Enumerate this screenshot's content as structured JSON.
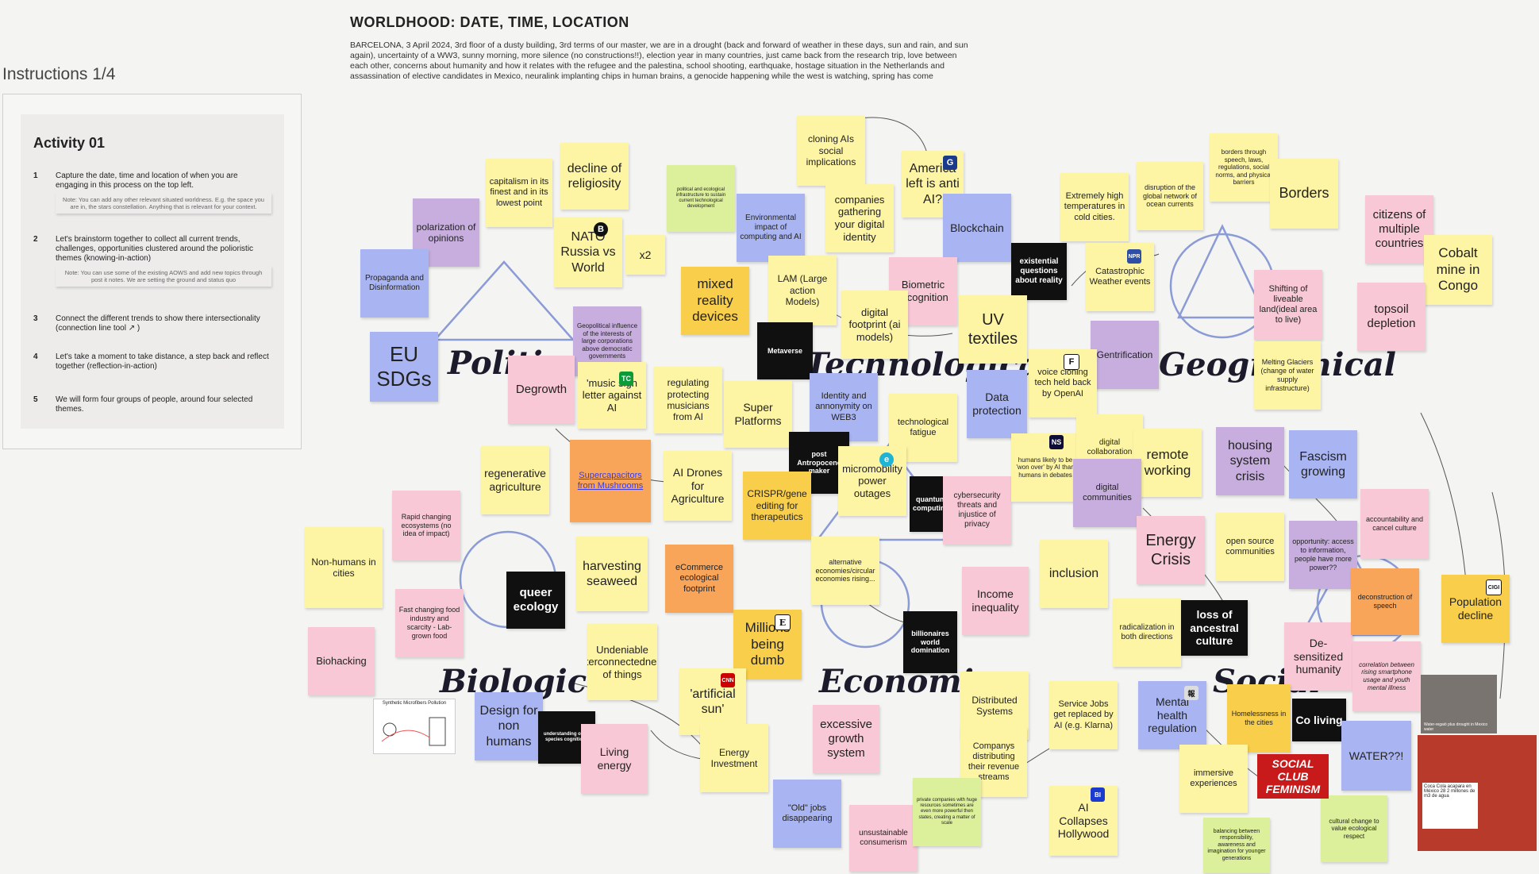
{
  "header": {
    "title": "WORLDHOOD: DATE, TIME, LOCATION",
    "description": "BARCELONA, 3 April 2024, 3rd floor of a dusty building, 3rd terms of our master, we are in a drought (back and forward of weather in these days, sun and rain, and sun again), uncertainty of a WW3, sunny morning, more silence (no constructions!!), election year in many countries, just came back from the research trip, love between each other, concerns about humanity and how it relates with the refugee and the palestina, school shooting, earthquake, hostage situation in the Netherlands and assassination of elective candidates in Mexico, neuralink implanting chips in human brains, a genocide happening while the west is watching, spring has come"
  },
  "instructions": {
    "label": "Instructions 1/4",
    "activity_title": "Activity 01",
    "steps": [
      {
        "num": "1",
        "text": "Capture the date, time and location of when you are engaging in this process on the top left.",
        "note": "Note: You can add any other relevant situated worldness. E.g. the space you are in, the stars constellation. Anything that is relevant for your context."
      },
      {
        "num": "2",
        "text": "Let's brainstorm together to collect all current trends, challenges, opportunities clustered around the polioristic themes (knowing-in-action)",
        "note": "Note: You can use some of the existing AOWS and add new topics through post it notes. We are setting the ground and status quo"
      },
      {
        "num": "3",
        "text": "Connect the different trends to show there intersectionality (connection line tool ↗ )",
        "note": ""
      },
      {
        "num": "4",
        "text": "Let's take a moment to take distance, a step back and reflect together (reflection-in-action)",
        "note": ""
      },
      {
        "num": "5",
        "text": "We will form four groups of people, around four selected themes.",
        "note": ""
      }
    ]
  },
  "themes": {
    "political": "Political",
    "technological": "Technological",
    "geographical": "Geographical",
    "biological": "Biological",
    "economic": "Economic",
    "social": "Social"
  },
  "notes": {
    "capitalism": "capitalism in its finest and in its lowest point",
    "religiosity": "decline of religiosity",
    "polarization": "polarization of opinions",
    "propaganda": "Propaganda and Disinformation",
    "nato": "NATO Russia vs World",
    "x2": "x2",
    "political_eco": "political and ecological infrastructure to sustain current technological development",
    "environmental": "Environmental impact of computing and AI",
    "cloning_ai": "cloning AIs social implications",
    "companies_identity": "companies gathering your digital identity",
    "america": "America left is anti AI?",
    "blockchain": "Blockchain",
    "extreme_temp": "Extremely high temperatures in cold cities.",
    "ocean": "disruption of the global network of ocean currents",
    "borders_through": "borders through speech, laws, regulations, social norms, and physical barriers",
    "borders": "Borders",
    "citizens": "citizens of multiple countries",
    "cobalt": "Cobalt mine in Congo",
    "eu_sdgs": "EU SDGs",
    "mixed_reality": "mixed reality devices",
    "lam": "LAM (Large action Models)",
    "biometric": "Biometric recognition",
    "digital_footprint": "digital footprint (ai models)",
    "existential": "existential questions about reality",
    "catastrophic": "Catastrophic Weather events",
    "shifting_land": "Shifting of liveable land(ideal area to live)",
    "topsoil": "topsoil depletion",
    "geopolitical": "Geopolitical influence of the interests of large corporations above democratic governments",
    "metaverse": "Metaverse",
    "uv_textiles": "UV textiles",
    "gentrification": "Gentrification",
    "melting": "Melting Glaciers (change of water supply infrastructure)",
    "degrowth": "Degrowth",
    "music_letter": "'music sign letter against AI",
    "regulating": "regulating protecting musicians from AI",
    "super_platforms": "Super Platforms",
    "identity_web3": "Identity and annonymity on WEB3",
    "voice_cloning": "voice cloning tech held back by OpenAI",
    "data_protection": "Data protection",
    "tech_fatigue": "technological fatigue",
    "regenerative": "regenerative agriculture",
    "supercapacitors": "Supercapacitors from Mushrooms",
    "ai_drones": "AI Drones for Agriculture",
    "post_anthropocene": "post Antropocene maker",
    "micromobility": "micromobility power outages",
    "crispr": "CRISPR/gene editing for therapeutics",
    "quantum": "quantum computing",
    "cybersecurity": "cybersecurity threats and injustice of privacy",
    "humans_debates": "humans likely to be 'won over' by AI than humans in debates",
    "digital_collab": "digital collaboration",
    "remote": "remote working",
    "housing": "housing system crisis",
    "fascism": "Fascism growing",
    "rapid_changing": "Rapid changing ecosystems (no idea of impact)",
    "non_humans_cities": "Non-humans in cities",
    "queer": "queer ecology",
    "harvesting": "harvesting seaweed",
    "ecommerce": "eCommerce ecological footprint",
    "alt_economies": "alternative economies/circular economies rising...",
    "digital_communities": "digital communities",
    "energy_crisis": "Energy Crisis",
    "open_source": "open source communities",
    "opportunity": "opportunity: access to information, people have more power??",
    "accountability": "accountability and cancel culture",
    "fast_food": "Fast changing food industry and scarcity - Lab-grown food",
    "biohacking": "Biohacking",
    "undeniable": "Undeniable interconnectedness of things",
    "millions_dumb": "Millions being dumb",
    "billionaires": "billionaires world domination",
    "income": "Income inequality",
    "inclusion": "inclusion",
    "radicalization": "radicalization in both directions",
    "ancestral": "loss of ancestral culture",
    "desensitized": "De-sensitized humanity",
    "deconstruction": "deconstruction of speech",
    "population": "Population decline",
    "artificial_sun": "'artificial sun'",
    "design_non_humans": "Design for non humans",
    "understanding_species": "understanding other species cognitions",
    "living_energy": "Living energy",
    "energy_investment": "Energy Investment",
    "excessive_growth": "excessive growth system",
    "distributed": "Distributed Systems",
    "service_jobs": "Service Jobs get replaced by AI (e.g. Klarna)",
    "mental_health": "Mental health regulation",
    "homelessness": "Homelessness in the cities",
    "co_living": "Co living",
    "correlation": "correlation between rising smartphone usage and youth mental illness",
    "companies_revenue": "Companys distributing their revenue streams",
    "old_jobs": "\"Old\" jobs disappearing",
    "unsustainable": "unsustainable consumerism",
    "private_companies": "private companies with huge resources sometimes are even more powerful then states, creating a matter of scale",
    "ai_hollywood": "AI Collapses Hollywood",
    "immersive": "immersive experiences",
    "social_club": "SOCIAL CLUB FEMINISM",
    "water": "WATER??!",
    "cultural_change": "cultural change to value ecological respect",
    "balancing": "balancing between responsibility, awareness and imagination for younger generations",
    "microfibers_caption": "Synthetic Microfibers Pollution",
    "news_caption": "Coca Cola acapara en México 28 2 millones de m3 de agua",
    "photo_caption": "Water-regaió plus drought in Mexico water"
  },
  "colors": {
    "yellow": "#fdf5a4",
    "pink": "#f9c8d6",
    "violet": "#c7aede",
    "blue": "#a9b5f2",
    "orange": "#f8a55a",
    "green": "#dcef9a",
    "black": "#101010",
    "gold": "#f8ce4a",
    "theme_lines": "#8b9bd6"
  }
}
